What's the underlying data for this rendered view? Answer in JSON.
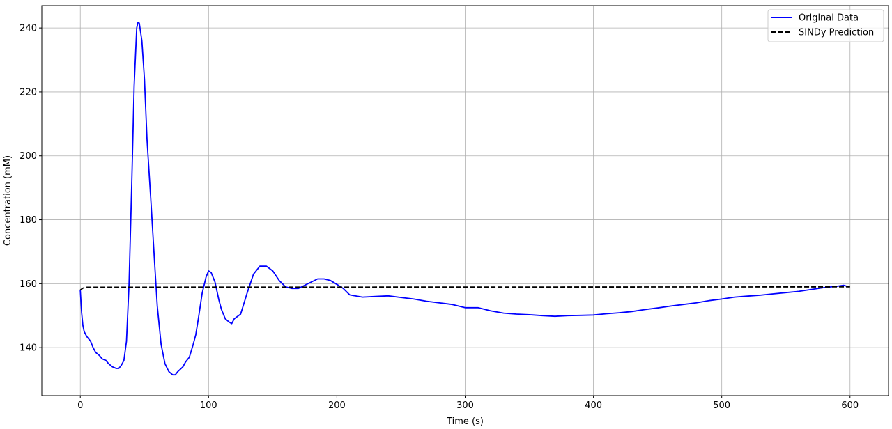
{
  "chart_data": {
    "type": "line",
    "title": "",
    "xlabel": "Time (s)",
    "ylabel": "Concentration (mM)",
    "xlim": [
      -30,
      630
    ],
    "ylim": [
      125,
      247
    ],
    "xticks": [
      0,
      100,
      200,
      300,
      400,
      500,
      600
    ],
    "yticks": [
      140,
      160,
      180,
      200,
      220,
      240
    ],
    "xtick_labels": [
      "0",
      "100",
      "200",
      "300",
      "400",
      "500",
      "600"
    ],
    "ytick_labels": [
      "140",
      "160",
      "180",
      "200",
      "220",
      "240"
    ],
    "grid": true,
    "legend_position": "top-right",
    "series": [
      {
        "name": "Original Data",
        "color": "#0000ff",
        "style": "solid",
        "x": [
          0,
          1,
          2,
          3,
          5,
          8,
          10,
          12,
          15,
          17,
          20,
          22,
          25,
          28,
          30,
          32,
          34,
          36,
          38,
          40,
          42,
          44,
          45,
          46,
          48,
          50,
          52,
          55,
          58,
          60,
          63,
          66,
          69,
          72,
          74,
          76,
          80,
          82,
          85,
          88,
          90,
          92,
          95,
          98,
          100,
          102,
          105,
          108,
          110,
          113,
          116,
          118,
          120,
          125,
          130,
          135,
          140,
          145,
          150,
          155,
          160,
          165,
          170,
          175,
          180,
          185,
          190,
          195,
          200,
          205,
          210,
          220,
          230,
          240,
          250,
          260,
          270,
          280,
          290,
          300,
          310,
          320,
          330,
          340,
          350,
          360,
          370,
          380,
          390,
          400,
          410,
          420,
          430,
          440,
          450,
          460,
          470,
          480,
          490,
          500,
          510,
          520,
          530,
          540,
          550,
          560,
          570,
          580,
          590,
          595,
          599
        ],
        "y": [
          158,
          151,
          147,
          145,
          143.5,
          142,
          140,
          138.5,
          137.5,
          136.5,
          136,
          135,
          134,
          133.5,
          133.5,
          134.5,
          136,
          142,
          160,
          190,
          222,
          240,
          241.8,
          241.5,
          236,
          224,
          205,
          186,
          166,
          153,
          141,
          135,
          132.5,
          131.5,
          131.5,
          132.5,
          134,
          135.5,
          137,
          141,
          144,
          149,
          157,
          162,
          164,
          163.5,
          160.5,
          155,
          152,
          149,
          148,
          147.5,
          149,
          150.5,
          157,
          163,
          165.5,
          165.5,
          164,
          161,
          159,
          158.5,
          158.5,
          159.5,
          160.5,
          161.5,
          161.5,
          161,
          159.8,
          158.5,
          156.5,
          155.8,
          156,
          156.2,
          155.7,
          155.2,
          154.5,
          154,
          153.5,
          152.5,
          152.5,
          151.5,
          150.8,
          150.5,
          150.3,
          150,
          149.8,
          150,
          150.1,
          150.2,
          150.6,
          150.9,
          151.3,
          151.9,
          152.4,
          153,
          153.5,
          154,
          154.7,
          155.2,
          155.8,
          156.1,
          156.4,
          156.8,
          157.2,
          157.6,
          158.2,
          158.8,
          159.2,
          159.5,
          159
        ]
      },
      {
        "name": "SINDy Prediction",
        "color": "#000000",
        "style": "dashed",
        "x": [
          0,
          1,
          2,
          4,
          600
        ],
        "y": [
          158,
          158.3,
          158.6,
          158.9,
          159
        ]
      }
    ]
  }
}
